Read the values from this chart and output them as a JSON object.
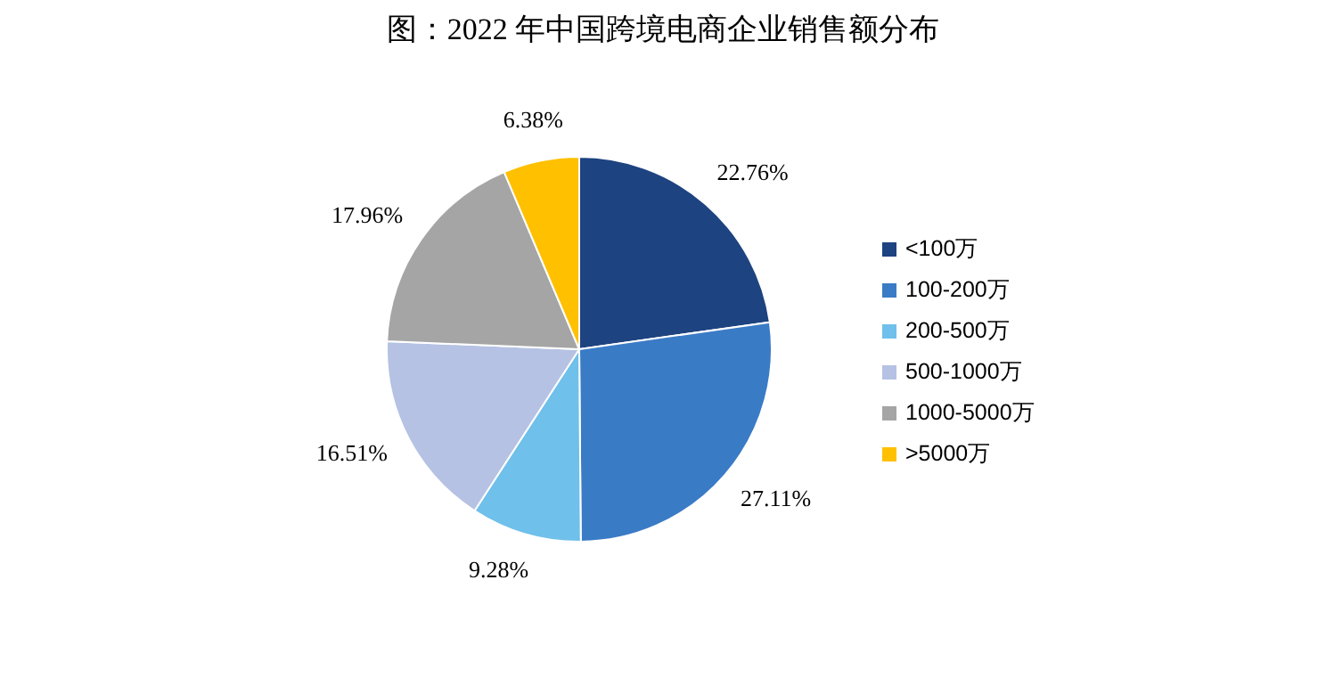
{
  "chart_data": {
    "type": "pie",
    "title": "图：2022 年中国跨境电商企业销售额分布",
    "categories": [
      "<100万",
      "100-200万",
      "200-500万",
      "500-1000万",
      "1000-5000万",
      ">5000万"
    ],
    "values": [
      22.76,
      27.11,
      9.28,
      16.51,
      17.96,
      6.38
    ],
    "colors": [
      "#1d4380",
      "#3a7bc6",
      "#6fc0ea",
      "#b5c2e4",
      "#a5a5a5",
      "#ffc000"
    ],
    "value_labels": [
      "22.76%",
      "27.11%",
      "9.28%",
      "16.51%",
      "17.96%",
      "6.38%"
    ],
    "legend": "right"
  }
}
